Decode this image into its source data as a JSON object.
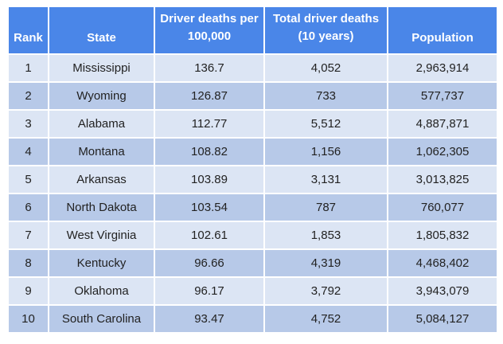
{
  "chart_data": {
    "type": "table",
    "columns": [
      "Rank",
      "State",
      "Driver deaths per 100,000",
      "Total driver deaths (10 years)",
      "Population"
    ],
    "rows": [
      [
        "1",
        "Mississippi",
        "136.7",
        "4,052",
        "2,963,914"
      ],
      [
        "2",
        "Wyoming",
        "126.87",
        "733",
        "577,737"
      ],
      [
        "3",
        "Alabama",
        "112.77",
        "5,512",
        "4,887,871"
      ],
      [
        "4",
        "Montana",
        "108.82",
        "1,156",
        "1,062,305"
      ],
      [
        "5",
        "Arkansas",
        "103.89",
        "3,131",
        "3,013,825"
      ],
      [
        "6",
        "North Dakota",
        "103.54",
        "787",
        "760,077"
      ],
      [
        "7",
        "West Virginia",
        "102.61",
        "1,853",
        "1,805,832"
      ],
      [
        "8",
        "Kentucky",
        "96.66",
        "4,319",
        "4,468,402"
      ],
      [
        "9",
        "Oklahoma",
        "96.17",
        "3,792",
        "3,943,079"
      ],
      [
        "10",
        "South Carolina",
        "93.47",
        "4,752",
        "5,084,127"
      ]
    ]
  },
  "colors": {
    "header_bg": "#4a86e8",
    "header_text": "#ffffff",
    "row_light": "#dce5f4",
    "row_dark": "#b7c9e8"
  }
}
